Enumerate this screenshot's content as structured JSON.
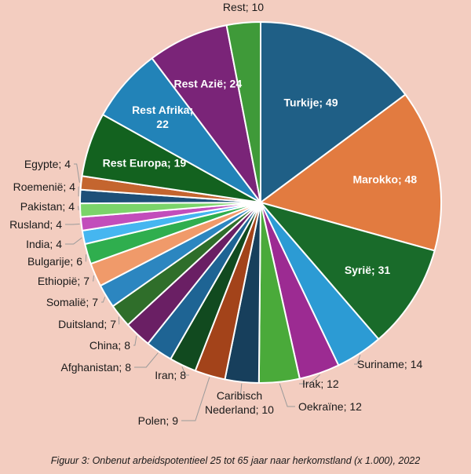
{
  "chart_data": {
    "type": "pie",
    "title": "",
    "caption": "Figuur 3: Onbenut arbeidspotentieel 25 tot 65 jaar naar herkomstland (x 1.000), 2022",
    "slices": [
      {
        "label": "Turkije",
        "value": 49,
        "display": "Turkije; 49",
        "color": "#1f5f86"
      },
      {
        "label": "Marokko",
        "value": 48,
        "display": "Marokko; 48",
        "color": "#e27b40"
      },
      {
        "label": "Syrië",
        "value": 31,
        "display": "Syrië; 31",
        "color": "#196b2a"
      },
      {
        "label": "Suriname",
        "value": 14,
        "display": "Suriname; 14",
        "color": "#2c9bd4"
      },
      {
        "label": "Irak",
        "value": 12,
        "display": "Irak; 12",
        "color": "#9c2b92"
      },
      {
        "label": "Oekraïne",
        "value": 12,
        "display": "Oekraïne; 12",
        "color": "#4aaa3a"
      },
      {
        "label": "Caribisch Nederland",
        "value": 10,
        "display": "Caribisch Nederland; 10",
        "color": "#173f5c"
      },
      {
        "label": "Polen",
        "value": 9,
        "display": "Polen; 9",
        "color": "#a3431a"
      },
      {
        "label": "Iran",
        "value": 8,
        "display": "Iran; 8",
        "color": "#114a1f"
      },
      {
        "label": "Afghanistan",
        "value": 8,
        "display": "Afghanistan; 8",
        "color": "#1e6494"
      },
      {
        "label": "China",
        "value": 8,
        "display": "China; 8",
        "color": "#6a1f64"
      },
      {
        "label": "Duitsland",
        "value": 7,
        "display": "Duitsland; 7",
        "color": "#2f6e2a"
      },
      {
        "label": "Somalië",
        "value": 7,
        "display": "Somalië; 7",
        "color": "#2c86c0"
      },
      {
        "label": "Ethiopië",
        "value": 7,
        "display": "Ethiopië; 7",
        "color": "#f09a6a"
      },
      {
        "label": "Bulgarije",
        "value": 6,
        "display": "Bulgarije; 6",
        "color": "#2fae4e"
      },
      {
        "label": "India",
        "value": 4,
        "display": "India; 4",
        "color": "#45b6f0"
      },
      {
        "label": "Rusland",
        "value": 4,
        "display": "Rusland; 4",
        "color": "#c24dbb"
      },
      {
        "label": "Pakistan",
        "value": 4,
        "display": "Pakistan; 4",
        "color": "#7bd46a"
      },
      {
        "label": "Roemenië",
        "value": 4,
        "display": "Roemenië; 4",
        "color": "#1d4f78"
      },
      {
        "label": "Egypte",
        "value": 4,
        "display": "Egypte; 4",
        "color": "#c4652f"
      },
      {
        "label": "Rest Europa",
        "value": 19,
        "display": "Rest Europa; 19",
        "color": "#13621f"
      },
      {
        "label": "Rest Afrika",
        "value": 22,
        "display": "Rest Afrika; 22",
        "color": "#2283b8"
      },
      {
        "label": "Rest Azië",
        "value": 24,
        "display": "Rest Azië; 24",
        "color": "#7a2478"
      },
      {
        "label": "Rest",
        "value": 10,
        "display": "Rest; 10",
        "color": "#3f9a39"
      }
    ],
    "legend": "none"
  }
}
